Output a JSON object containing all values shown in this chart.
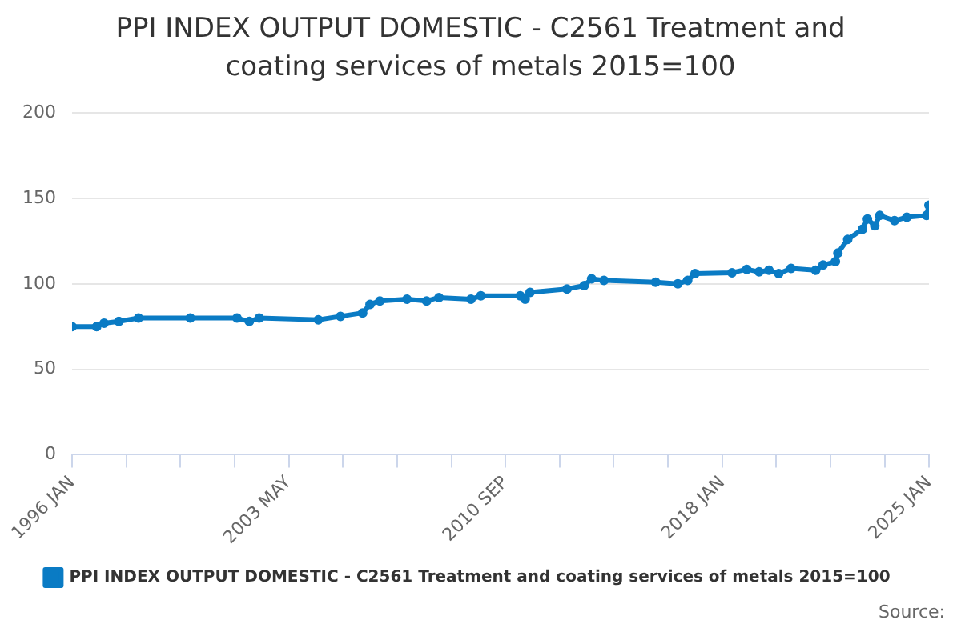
{
  "chart_data": {
    "type": "line",
    "title": "PPI INDEX OUTPUT DOMESTIC - C2561 Treatment and coating services of metals 2015=100",
    "x": [
      "1996-01",
      "1996-11",
      "1997-02",
      "1997-08",
      "1998-04",
      "2000-01",
      "2001-08",
      "2002-01",
      "2002-05",
      "2004-05",
      "2005-02",
      "2005-11",
      "2006-02",
      "2006-06",
      "2007-05",
      "2008-01",
      "2008-06",
      "2009-07",
      "2009-11",
      "2011-03",
      "2011-05",
      "2011-07",
      "2012-10",
      "2013-05",
      "2013-08",
      "2014-01",
      "2015-10",
      "2016-07",
      "2016-11",
      "2017-02",
      "2018-05",
      "2018-11",
      "2019-04",
      "2019-08",
      "2019-12",
      "2020-05",
      "2021-03",
      "2021-06",
      "2021-11",
      "2021-12",
      "2022-04",
      "2022-10",
      "2022-12",
      "2023-03",
      "2023-05",
      "2023-11",
      "2024-04",
      "2024-12",
      "2025-01"
    ],
    "series": [
      {
        "name": "PPI INDEX OUTPUT DOMESTIC - C2561 Treatment and coating services of metals 2015=100",
        "color": "#0a7bc4",
        "values": [
          75,
          75,
          77,
          78,
          80,
          80,
          80,
          78,
          80,
          79,
          81,
          83,
          88,
          90,
          91,
          90,
          92,
          91,
          93,
          93,
          91,
          95,
          97,
          99,
          103,
          102,
          101,
          100,
          102,
          106,
          106.5,
          108.5,
          107,
          108,
          106,
          109,
          108,
          111,
          113,
          118,
          126,
          132,
          138,
          134,
          140,
          137,
          139,
          140,
          146
        ]
      }
    ],
    "xlim": [
      "1996-01",
      "2025-01"
    ],
    "xticks": [
      {
        "value": "1996-01",
        "label": "1996 JAN"
      },
      {
        "value": "1997-11",
        "label": null
      },
      {
        "value": "1999-09",
        "label": null
      },
      {
        "value": "2001-07",
        "label": null
      },
      {
        "value": "2003-05",
        "label": "2003 MAY"
      },
      {
        "value": "2005-03",
        "label": null
      },
      {
        "value": "2007-01",
        "label": null
      },
      {
        "value": "2008-11",
        "label": null
      },
      {
        "value": "2010-09",
        "label": "2010 SEP"
      },
      {
        "value": "2012-07",
        "label": null
      },
      {
        "value": "2014-05",
        "label": null
      },
      {
        "value": "2016-03",
        "label": null
      },
      {
        "value": "2018-01",
        "label": "2018 JAN"
      },
      {
        "value": "2019-11",
        "label": null
      },
      {
        "value": "2021-09",
        "label": null
      },
      {
        "value": "2023-07",
        "label": null
      },
      {
        "value": "2025-01",
        "label": "2025 JAN"
      }
    ],
    "ylim": [
      0,
      200
    ],
    "yticks": [
      0,
      50,
      100,
      150,
      200
    ],
    "grid": "y",
    "legend": "bottom",
    "marker": "circle",
    "line_style": "solid",
    "annotations": [
      "Source:"
    ]
  }
}
